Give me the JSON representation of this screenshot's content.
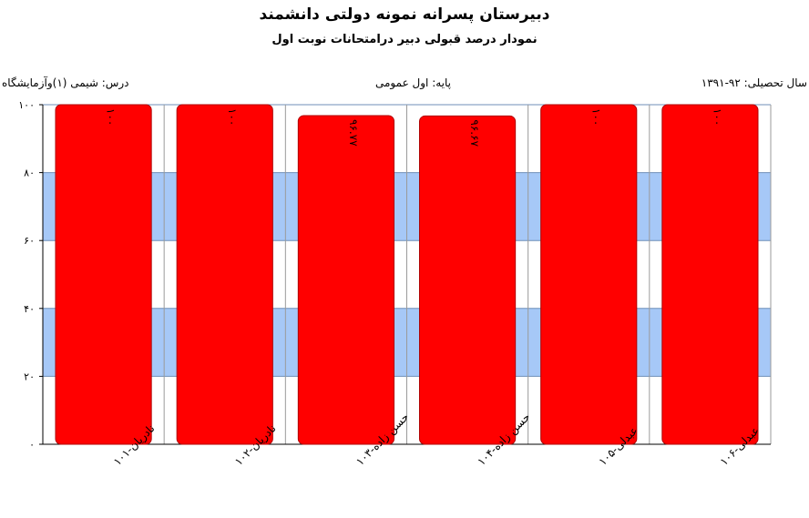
{
  "header": {
    "title": "دبیرستان پسرانه نمونه دولتی دانشمند",
    "subtitle": "نمودار درصد قبولی دبیر درامتحانات نوبت اول"
  },
  "meta": {
    "year": "سال تحصیلی: ۹۲-۱۳۹۱",
    "grade": "پایه: اول عمومی",
    "course": "درس: شیمی (۱)وآزمایشگاه"
  },
  "chart_data": {
    "type": "bar",
    "categories": [
      "نادریان-۱۰۱",
      "نادریان-۱۰۲",
      "حسن زاده-۱۰۳",
      "حسن زاده-۱۰۴",
      "عبدلی-۱۰۵",
      "عبدلی-۱۰۶"
    ],
    "values": [
      100,
      100,
      96.77,
      96.67,
      100,
      100
    ],
    "data_labels": [
      "۱۰۰",
      "۱۰۰",
      "۹۶.۷۷",
      "۹۶.۶۷",
      "۱۰۰",
      "۱۰۰"
    ],
    "y_tick_labels": [
      "۰",
      "۲۰",
      "۴۰",
      "۶۰",
      "۸۰",
      "۱۰۰"
    ],
    "ylim": [
      0,
      100
    ],
    "bar_color": "#ff0000",
    "band_colors": [
      "#ffffff",
      "#a6c8f7"
    ],
    "grid": true,
    "legend": "none"
  }
}
